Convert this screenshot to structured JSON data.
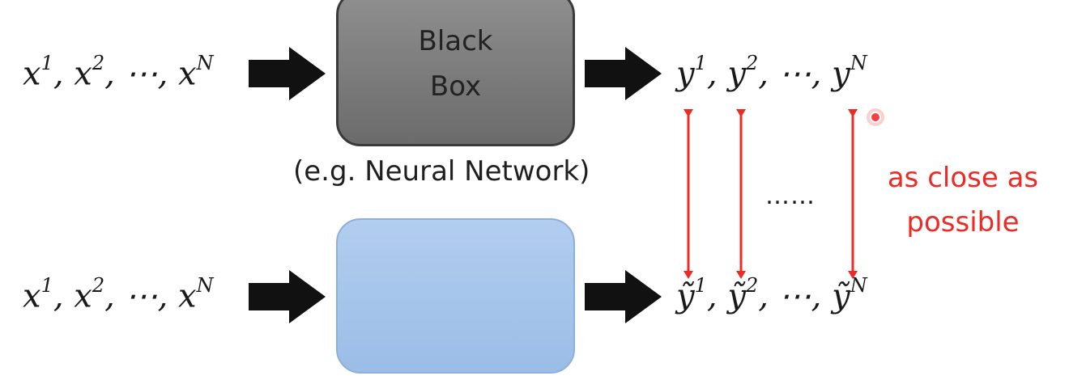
{
  "top_row": {
    "input": {
      "var": "x",
      "sup1": "1",
      "sup2": "2",
      "supN": "N",
      "sep1": ",",
      "sep2": ",",
      "ellipsis": "⋯",
      "sep3": ","
    },
    "box_line1": "Black",
    "box_line2": "Box",
    "output": {
      "var": "y",
      "sup1": "1",
      "sup2": "2",
      "supN": "N",
      "sep1": ",",
      "sep2": ",",
      "ellipsis": "⋯",
      "sep3": ","
    }
  },
  "caption": "(e.g. Neural Network)",
  "bottom_row": {
    "input": {
      "var": "x",
      "sup1": "1",
      "sup2": "2",
      "supN": "N",
      "sep1": ",",
      "sep2": ",",
      "ellipsis": "⋯",
      "sep3": ","
    },
    "output": {
      "var": "ỹ",
      "sup1": "1",
      "sup2": "2",
      "supN": "N",
      "sep1": ",",
      "sep2": ",",
      "ellipsis": "⋯",
      "sep3": ","
    }
  },
  "middle_dots": "……",
  "annotation": {
    "line1": "as close as",
    "line2": "possible"
  },
  "colors": {
    "arrow_black": "#111111",
    "arrow_red": "#ee2a24",
    "black_box": "#7d7d7d",
    "blue_box": "#a7c6ec",
    "pointer": "#f44040"
  }
}
